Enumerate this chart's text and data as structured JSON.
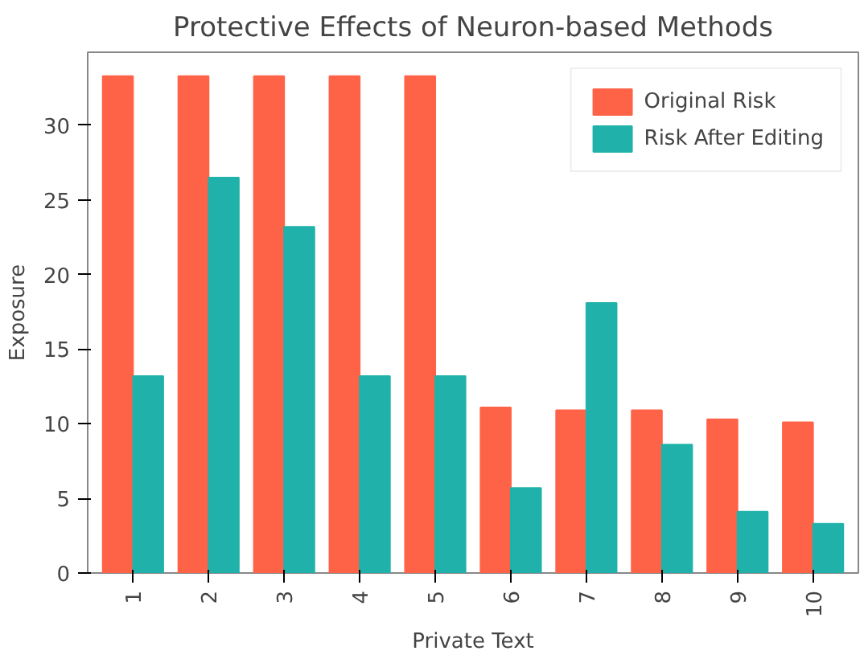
{
  "chart_data": {
    "type": "bar",
    "title": "Protective Effects of Neuron-based Methods",
    "xlabel": "Private Text",
    "ylabel": "Exposure",
    "categories": [
      "1",
      "2",
      "3",
      "4",
      "5",
      "6",
      "7",
      "8",
      "9",
      "10"
    ],
    "series": [
      {
        "name": "Original Risk",
        "color": "#ff6347",
        "values": [
          33.3,
          33.3,
          33.3,
          33.3,
          33.3,
          11.1,
          10.9,
          10.9,
          10.3,
          10.1
        ]
      },
      {
        "name": "Risk After Editing",
        "color": "#20b2aa",
        "values": [
          13.2,
          26.5,
          23.2,
          13.2,
          13.2,
          5.7,
          18.1,
          8.6,
          4.1,
          3.3
        ]
      }
    ],
    "ylim": [
      0,
      34.9
    ],
    "yticks": [
      0,
      5,
      10,
      15,
      20,
      25,
      30
    ],
    "grid": false,
    "legend": "top right"
  }
}
